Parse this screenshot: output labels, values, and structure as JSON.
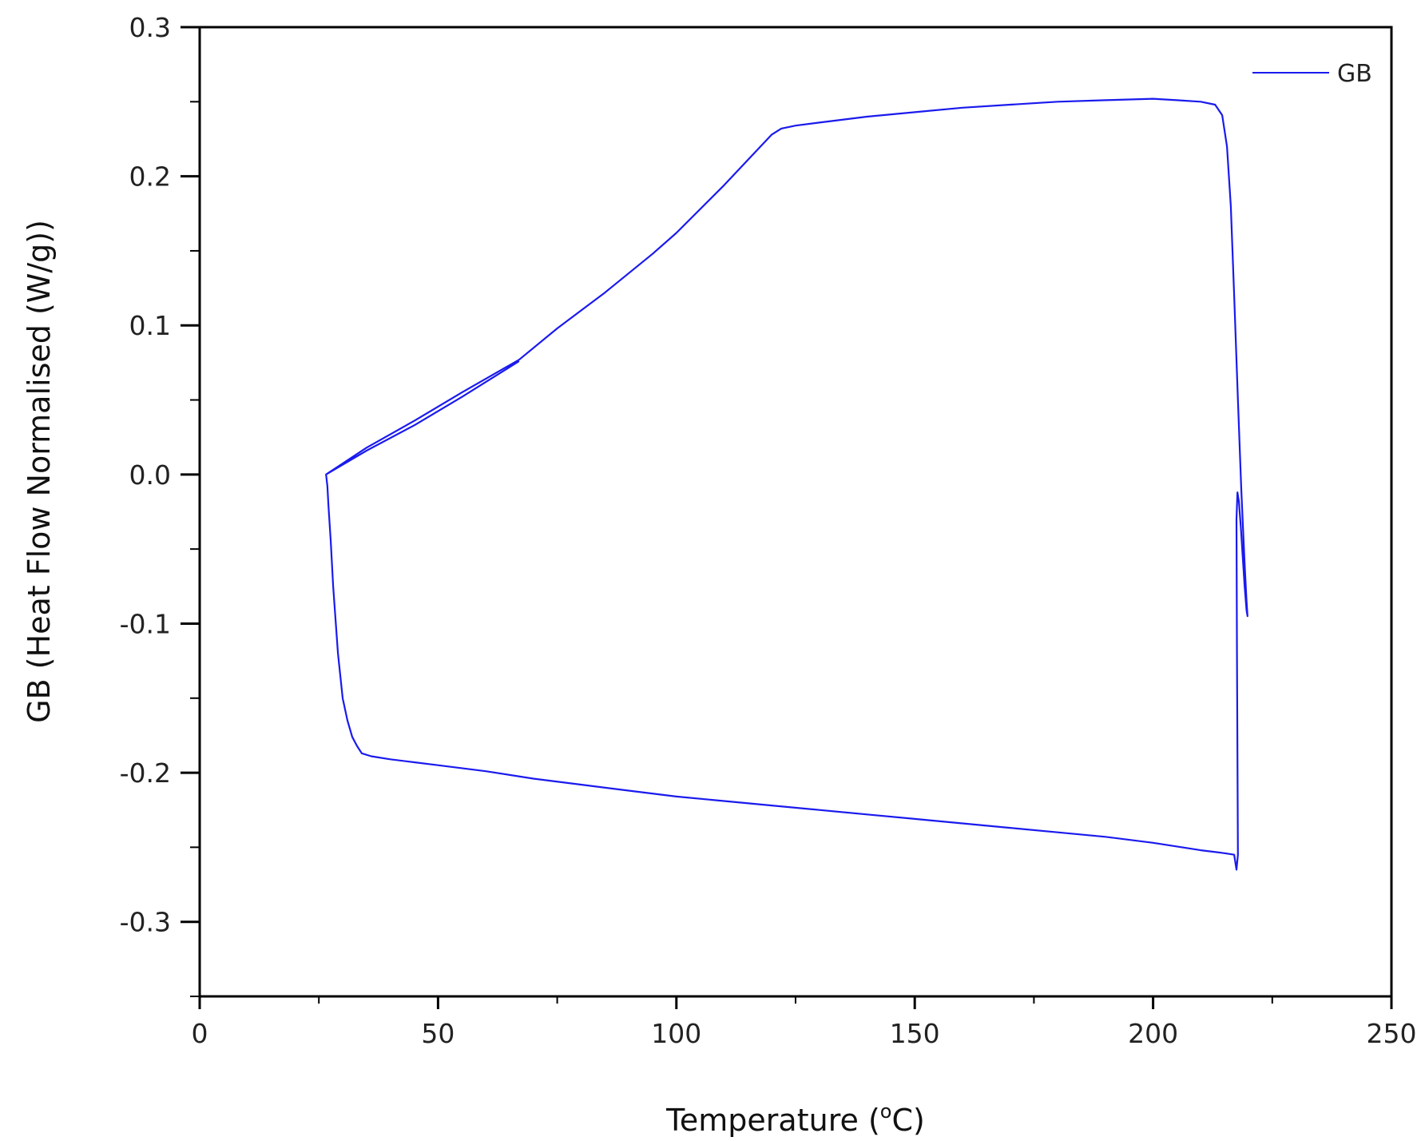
{
  "chart_data": {
    "type": "line",
    "xlabel_main": "Temperature (",
    "xlabel_sup": "o",
    "xlabel_tail": "C)",
    "ylabel": "GB (Heat Flow Normalised (W/g))",
    "xlim": [
      0,
      250
    ],
    "ylim": [
      -0.35,
      0.3
    ],
    "xticks": [
      0,
      50,
      100,
      150,
      200,
      250
    ],
    "xtick_labels": [
      "0",
      "50",
      "100",
      "150",
      "200",
      "250"
    ],
    "yticks": [
      0.3,
      0.2,
      0.1,
      0.0,
      -0.1,
      -0.2,
      -0.3
    ],
    "ytick_labels": [
      "0.3",
      "0.2",
      "0.1",
      "0.0",
      "-0.1",
      "-0.2",
      "-0.3"
    ],
    "grid": false,
    "legend_position": "top-right",
    "series": [
      {
        "name": "GB",
        "color": "#1a1aee",
        "x": [
          26.5,
          35,
          45,
          55,
          67,
          75,
          85,
          95,
          100,
          110,
          120,
          122,
          125,
          130,
          140,
          150,
          160,
          170,
          180,
          190,
          200,
          205,
          210,
          213,
          214.5,
          215.5,
          216.3,
          217,
          217.8,
          218.5,
          219.2,
          219.6,
          219.8,
          219.6,
          219.2,
          218.8,
          218.4,
          218.0,
          217.7,
          217.5,
          217.6,
          217.8,
          217.5,
          217.0,
          215,
          210,
          200,
          190,
          180,
          170,
          160,
          150,
          140,
          130,
          120,
          110,
          100,
          90,
          80,
          70,
          60,
          50,
          45,
          40,
          36,
          34,
          33,
          32,
          31,
          30,
          29,
          28,
          27.5,
          27,
          26.8,
          26.5,
          26.5,
          35,
          45,
          55,
          67
        ],
        "y": [
          0.0,
          0.018,
          0.036,
          0.055,
          0.077,
          0.098,
          0.122,
          0.148,
          0.162,
          0.194,
          0.228,
          0.232,
          0.234,
          0.236,
          0.24,
          0.243,
          0.246,
          0.248,
          0.25,
          0.251,
          0.252,
          0.251,
          0.25,
          0.248,
          0.241,
          0.22,
          0.18,
          0.12,
          0.05,
          -0.01,
          -0.06,
          -0.085,
          -0.095,
          -0.091,
          -0.075,
          -0.055,
          -0.035,
          -0.018,
          -0.012,
          -0.03,
          -0.12,
          -0.255,
          -0.265,
          -0.255,
          -0.254,
          -0.252,
          -0.247,
          -0.243,
          -0.24,
          -0.237,
          -0.234,
          -0.231,
          -0.228,
          -0.225,
          -0.222,
          -0.219,
          -0.216,
          -0.212,
          -0.208,
          -0.204,
          -0.199,
          -0.195,
          -0.193,
          -0.191,
          -0.189,
          -0.187,
          -0.182,
          -0.176,
          -0.165,
          -0.15,
          -0.12,
          -0.075,
          -0.045,
          -0.02,
          -0.008,
          0.0,
          0.0,
          0.016,
          0.033,
          0.052,
          0.076
        ]
      }
    ]
  }
}
